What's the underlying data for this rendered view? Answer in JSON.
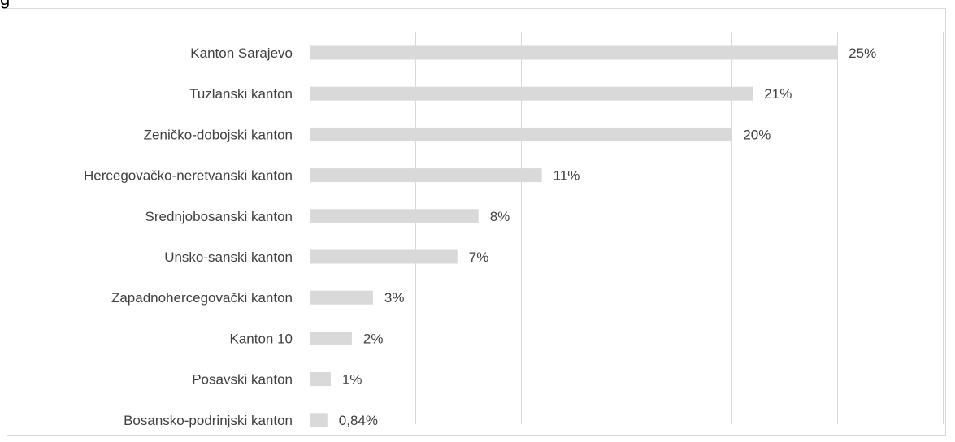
{
  "fragment_text": "g",
  "chart_data": {
    "type": "bar",
    "orientation": "horizontal",
    "title": "",
    "xlabel": "",
    "ylabel": "",
    "categories": [
      "Kanton Sarajevo",
      "Tuzlanski kanton",
      "Zeničko-dobojski kanton",
      "Hercegovačko-neretvanski kanton",
      "Srednjobosanski kanton",
      "Unsko-sanski kanton",
      "Zapadnohercegovački kanton",
      "Kanton 10",
      "Posavski kanton",
      "Bosansko-podrinjski kanton"
    ],
    "values": [
      25,
      21,
      20,
      11,
      8,
      7,
      3,
      2,
      1,
      0.84
    ],
    "value_labels": [
      "25%",
      "21%",
      "20%",
      "11%",
      "8%",
      "7%",
      "3%",
      "2%",
      "1%",
      "0,84%"
    ],
    "xlim": [
      0,
      30
    ],
    "grid_step": 5,
    "grid": true,
    "legend": "none",
    "bar_color": "#d9d9d9"
  }
}
